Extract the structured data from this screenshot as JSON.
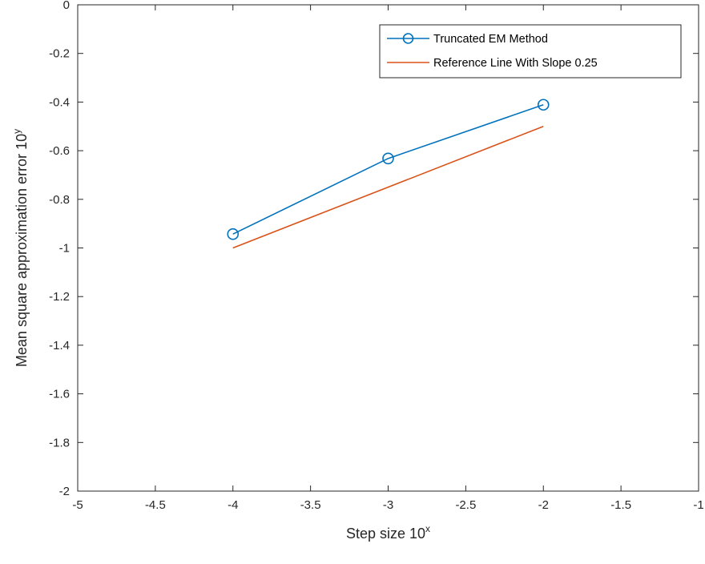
{
  "chart_data": {
    "type": "line",
    "xlabel": "Step size 10",
    "xlabel_sup": "x",
    "ylabel": "Mean square approximation error 10",
    "ylabel_sup": "y",
    "xlim": [
      -5,
      -1
    ],
    "ylim": [
      -2,
      0
    ],
    "xticks": [
      -5,
      -4.5,
      -4,
      -3.5,
      -3,
      -2.5,
      -2,
      -1.5,
      -1
    ],
    "xtick_labels": [
      "-5",
      "-4.5",
      "-4",
      "-3.5",
      "-3",
      "-2.5",
      "-2",
      "-1.5",
      "-1"
    ],
    "yticks": [
      0,
      -0.2,
      -0.4,
      -0.6,
      -0.8,
      -1,
      -1.2,
      -1.4,
      -1.6,
      -1.8,
      -2
    ],
    "ytick_labels": [
      "0",
      "-0.2",
      "-0.4",
      "-0.6",
      "-0.8",
      "-1",
      "-1.2",
      "-1.4",
      "-1.6",
      "-1.8",
      "-2"
    ],
    "grid": false,
    "legend_position": "top-right",
    "series": [
      {
        "name": "Truncated EM Method",
        "color": "#0072BD",
        "marker": "circle",
        "x": [
          -4,
          -3,
          -2
        ],
        "y": [
          -0.943,
          -0.632,
          -0.411
        ]
      },
      {
        "name": "Reference Line With Slope 0.25",
        "color": "#D95319",
        "marker": "none",
        "x": [
          -4,
          -2
        ],
        "y": [
          -1.0,
          -0.5
        ]
      }
    ]
  }
}
